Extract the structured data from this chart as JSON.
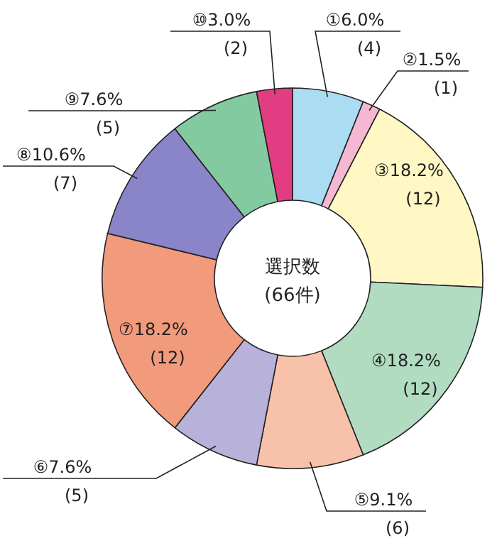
{
  "chart_data": {
    "type": "donut",
    "categories": [
      "①",
      "②",
      "③",
      "④",
      "⑤",
      "⑥",
      "⑦",
      "⑧",
      "⑨",
      "⑩"
    ],
    "values": [
      4,
      1,
      12,
      12,
      6,
      5,
      12,
      7,
      5,
      2
    ],
    "value_labels": [
      "6.0%\n(4)",
      "1.5%\n(1)",
      "18.2%\n(12)",
      "18.2%\n(12)",
      "9.1%\n(6)",
      "7.6%\n(5)",
      "18.2%\n(12)",
      "10.6%\n(7)",
      "7.6%\n(5)",
      "3.0%\n(2)"
    ],
    "colors": [
      "#aadcf2",
      "#f4b8d2",
      "#fff8c4",
      "#b2dcc2",
      "#f8c2aa",
      "#b8b2da",
      "#f29a7c",
      "#8a84c8",
      "#84caa0",
      "#e23c82"
    ],
    "annotations": [
      "選択数",
      "(66件)"
    ],
    "legend": false
  }
}
